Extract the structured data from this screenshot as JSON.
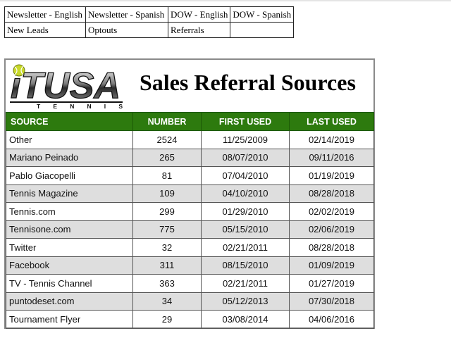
{
  "nav": {
    "links": [
      [
        "Newsletter - English",
        "Newsletter - Spanish",
        "DOW - English",
        "DOW - Spanish"
      ],
      [
        "New Leads",
        "Optouts",
        "Referrals",
        ""
      ]
    ]
  },
  "report": {
    "logo_text": "iTUSA",
    "logo_subtext": "T E N N I S",
    "title": "Sales Referral Sources",
    "columns": [
      "SOURCE",
      "NUMBER",
      "FIRST USED",
      "LAST USED"
    ],
    "rows": [
      [
        "Other",
        "2524",
        "11/25/2009",
        "02/14/2019"
      ],
      [
        "Mariano Peinado",
        "265",
        "08/07/2010",
        "09/11/2016"
      ],
      [
        "Pablo Giacopelli",
        "81",
        "07/04/2010",
        "01/19/2019"
      ],
      [
        "Tennis Magazine",
        "109",
        "04/10/2010",
        "08/28/2018"
      ],
      [
        "Tennis.com",
        "299",
        "01/29/2010",
        "02/02/2019"
      ],
      [
        "Tennisone.com",
        "775",
        "05/15/2010",
        "02/06/2019"
      ],
      [
        "Twitter",
        "32",
        "02/21/2011",
        "08/28/2018"
      ],
      [
        "Facebook",
        "311",
        "08/15/2010",
        "01/09/2019"
      ],
      [
        "TV - Tennis Channel",
        "363",
        "02/21/2011",
        "01/27/2019"
      ],
      [
        "puntodeset.com",
        "34",
        "05/12/2013",
        "07/30/2018"
      ],
      [
        "Tournament Flyer",
        "29",
        "03/08/2014",
        "04/06/2016"
      ]
    ]
  },
  "colors": {
    "header_green": "#2d7a0e",
    "alt_row": "#dedede",
    "tennis_ball": "#c9d92a"
  }
}
